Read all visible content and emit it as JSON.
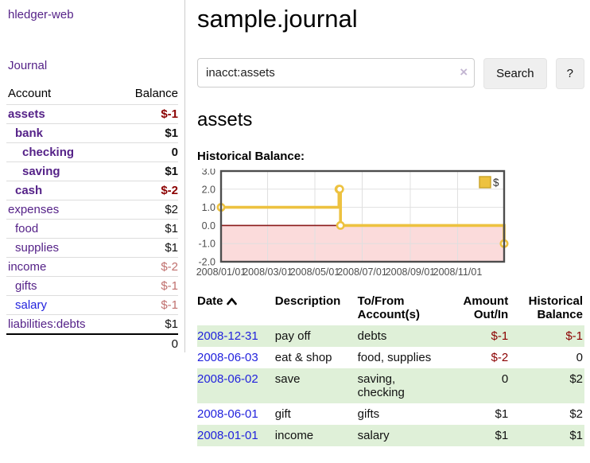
{
  "colors": {
    "link_purple": "#552288",
    "link_blue": "#2222dd",
    "negative_strong": "#8b0000",
    "negative_muted": "#c0706e",
    "row_green": "#dff0d8",
    "chart_line": "#edc240",
    "chart_line_border": "#c9a227",
    "chart_negative_fill": "#fbdbdb",
    "chart_zero_line": "#8b1a1a",
    "chart_grid": "#e0e0e0",
    "chart_border": "#4d4d4d",
    "axis_text": "#4d4d4d"
  },
  "sidebar": {
    "brand": "hledger-web",
    "nav": [
      {
        "label": "Journal"
      }
    ],
    "accounts_table": {
      "headers": [
        "Account",
        "Balance"
      ],
      "rows": [
        {
          "account": "assets",
          "balance": "$-1",
          "indent": 1,
          "bold": true,
          "balance_style": "negative-strong"
        },
        {
          "account": "bank",
          "balance": "$1",
          "indent": 2,
          "bold": true,
          "balance_style": "normal"
        },
        {
          "account": "checking",
          "balance": "0",
          "indent": 3,
          "bold": true,
          "balance_style": "normal"
        },
        {
          "account": "saving",
          "balance": "$1",
          "indent": 3,
          "bold": true,
          "balance_style": "normal"
        },
        {
          "account": "cash",
          "balance": "$-2",
          "indent": 2,
          "bold": true,
          "balance_style": "negative-strong"
        },
        {
          "account": "expenses",
          "balance": "$2",
          "indent": 1,
          "bold": false,
          "balance_style": "normal"
        },
        {
          "account": "food",
          "balance": "$1",
          "indent": 2,
          "bold": false,
          "balance_style": "normal"
        },
        {
          "account": "supplies",
          "balance": "$1",
          "indent": 2,
          "bold": false,
          "balance_style": "normal"
        },
        {
          "account": "income",
          "balance": "$-2",
          "indent": 1,
          "bold": false,
          "balance_style": "negative-muted"
        },
        {
          "account": "gifts",
          "balance": "$-1",
          "indent": 2,
          "bold": false,
          "balance_style": "negative-muted"
        },
        {
          "account": "salary",
          "balance": "$-1",
          "indent": 2,
          "bold": false,
          "balance_style": "negative-muted",
          "link_color": "blue"
        },
        {
          "account": "liabilities:debts",
          "balance": "$1",
          "indent": 1,
          "bold": false,
          "balance_style": "normal"
        }
      ],
      "total": "0"
    }
  },
  "main": {
    "title": "sample.journal",
    "search": {
      "value": "inacct:assets",
      "clear_icon": "×",
      "search_button": "Search",
      "help_button": "?"
    },
    "account_heading": "assets",
    "chart_label": "Historical Balance:",
    "register": {
      "headers": [
        "Date",
        "Description",
        "To/From Account(s)",
        "Amount Out/In",
        "Historical Balance"
      ],
      "sort_column": "Date",
      "sort_direction": "ascending",
      "rows": [
        {
          "date": "2008-12-31",
          "description": "pay off",
          "accounts": "debts",
          "amount": "$-1",
          "balance": "$-1",
          "amount_negative": true,
          "balance_negative": true
        },
        {
          "date": "2008-06-03",
          "description": "eat & shop",
          "accounts": "food, supplies",
          "amount": "$-2",
          "balance": "0",
          "amount_negative": true,
          "balance_negative": false
        },
        {
          "date": "2008-06-02",
          "description": "save",
          "accounts": "saving, checking",
          "amount": "0",
          "balance": "$2",
          "amount_negative": false,
          "balance_negative": false
        },
        {
          "date": "2008-06-01",
          "description": "gift",
          "accounts": "gifts",
          "amount": "$1",
          "balance": "$2",
          "amount_negative": false,
          "balance_negative": false
        },
        {
          "date": "2008-01-01",
          "description": "income",
          "accounts": "salary",
          "amount": "$1",
          "balance": "$1",
          "amount_negative": false,
          "balance_negative": false
        }
      ]
    }
  },
  "chart_data": {
    "type": "line",
    "step": true,
    "title": "Historical Balance:",
    "series": [
      {
        "name": "$",
        "points": [
          [
            "2008-01-01",
            1
          ],
          [
            "2008-06-01",
            2
          ],
          [
            "2008-06-02",
            2
          ],
          [
            "2008-06-03",
            0
          ],
          [
            "2008-12-31",
            -1
          ]
        ]
      }
    ],
    "xlim": [
      "2008-01-01",
      "2008-12-31"
    ],
    "ylim": [
      -2,
      3
    ],
    "x_ticks": [
      "2008/01/01",
      "2008/03/01",
      "2008/05/01",
      "2008/07/01",
      "2008/09/01",
      "2008/11/01"
    ],
    "y_ticks": [
      3.0,
      2.0,
      1.0,
      0.0,
      -1.0,
      -2.0
    ],
    "legend": [
      "$"
    ],
    "legend_position": "top-right",
    "grid": true,
    "negative_region_shaded": true
  }
}
